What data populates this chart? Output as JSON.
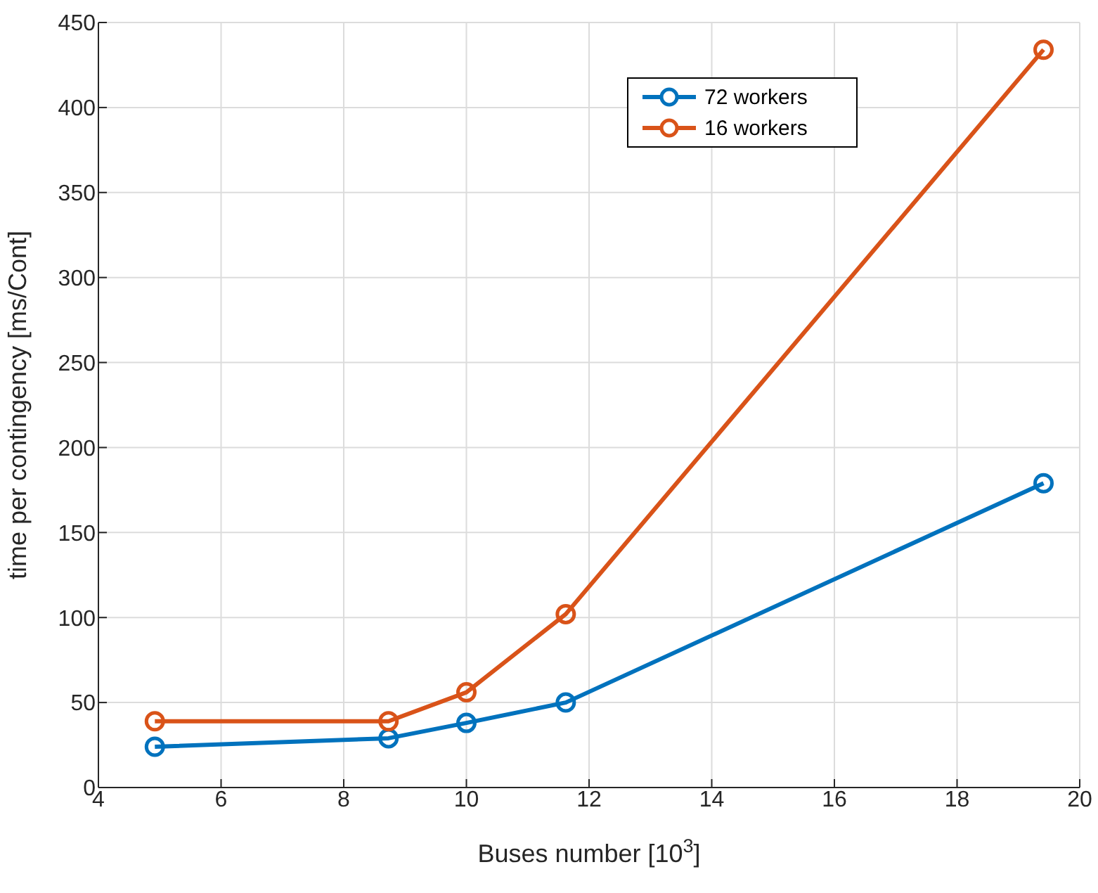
{
  "chart_data": {
    "type": "line",
    "xlabel": "Buses number [10$^{3}$]",
    "ylabel": "time per contingency [ms/Cont]",
    "x": [
      4.92,
      8.73,
      10.0,
      11.62,
      19.41
    ],
    "series": [
      {
        "name": "72 workers",
        "color": "#0072bd",
        "values": [
          24,
          29,
          38,
          50,
          179
        ]
      },
      {
        "name": "16 workers",
        "color": "#d95319",
        "values": [
          39,
          39,
          56,
          102,
          434
        ]
      }
    ],
    "xlim": [
      4,
      20
    ],
    "xticks": [
      4,
      6,
      8,
      10,
      12,
      14,
      16,
      18,
      20
    ],
    "ylim": [
      0,
      450
    ],
    "yticks": [
      0,
      50,
      100,
      150,
      200,
      250,
      300,
      350,
      400,
      450
    ],
    "grid": true,
    "legend": "top right",
    "marker": "circle",
    "line_style": "solid"
  }
}
